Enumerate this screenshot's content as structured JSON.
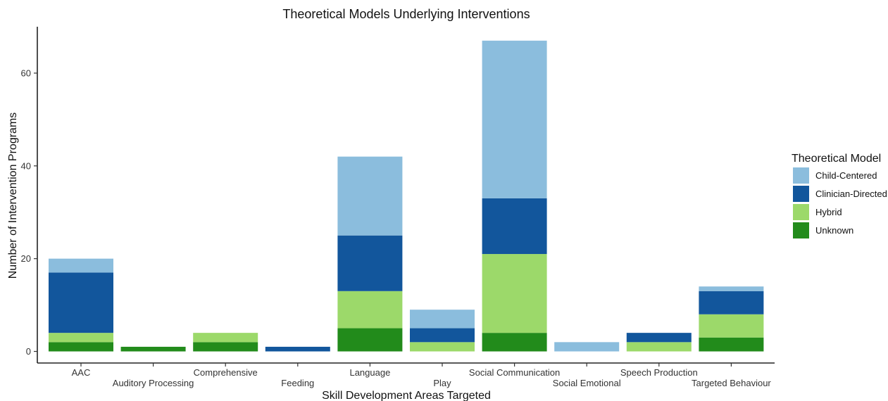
{
  "chart_data": {
    "type": "bar",
    "stacked": true,
    "title": "Theoretical Models Underlying Interventions",
    "xlabel": "Skill Development Areas Targeted",
    "ylabel": "Number of Intervention Programs",
    "ylim": [
      -2.5,
      70
    ],
    "yticks": [
      0,
      20,
      40,
      60
    ],
    "grid": false,
    "legend_title": "Theoretical Model",
    "legend_position": "right",
    "categories": [
      "AAC",
      "Auditory Processing",
      "Comprehensive",
      "Feeding",
      "Language",
      "Play",
      "Social Communication",
      "Social Emotional",
      "Speech Production",
      "Targeted Behaviour"
    ],
    "series": [
      {
        "name": "Unknown",
        "color": "#228B1B",
        "values": [
          2,
          1,
          2,
          0,
          5,
          0,
          4,
          0,
          0,
          3
        ]
      },
      {
        "name": "Hybrid",
        "color": "#9CD96A",
        "values": [
          2,
          0,
          2,
          0,
          8,
          2,
          17,
          0,
          2,
          5
        ]
      },
      {
        "name": "Clinician-Directed",
        "color": "#12569C",
        "values": [
          13,
          0,
          0,
          1,
          12,
          3,
          12,
          0,
          2,
          5
        ]
      },
      {
        "name": "Child-Centered",
        "color": "#8BBDDD",
        "values": [
          3,
          0,
          0,
          0,
          17,
          4,
          34,
          2,
          0,
          1
        ]
      }
    ],
    "legend_order": [
      "Child-Centered",
      "Clinician-Directed",
      "Hybrid",
      "Unknown"
    ]
  }
}
